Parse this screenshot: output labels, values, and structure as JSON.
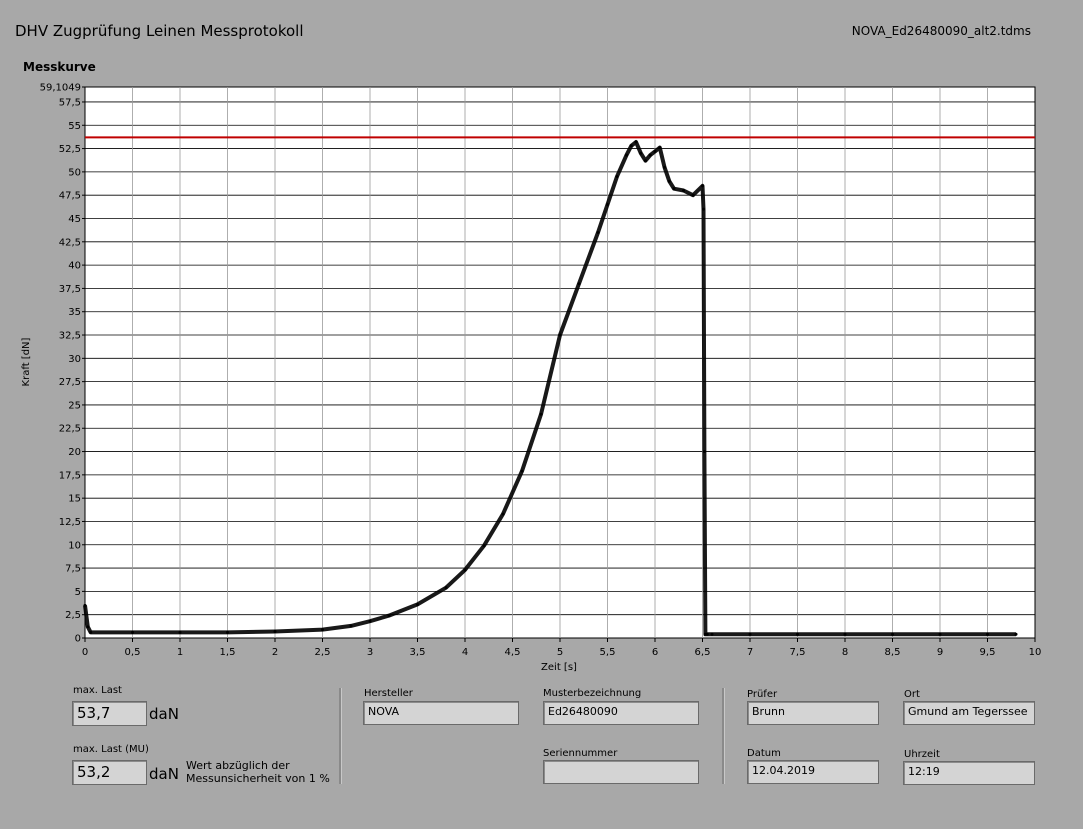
{
  "header": {
    "title": "DHV Zugprüfung Leinen Messprotokoll",
    "filename": "NOVA_Ed26480090_alt2.tdms",
    "section": "Messkurve"
  },
  "chart_data": {
    "type": "line",
    "xlabel": "Zeit [s]",
    "ylabel": "Kraft [dN]",
    "xlim": [
      0,
      10
    ],
    "ylim": [
      0,
      59.1049
    ],
    "x_ticks": [
      "0",
      "0,5",
      "1",
      "1,5",
      "2",
      "2,5",
      "3",
      "3,5",
      "4",
      "4,5",
      "5",
      "5,5",
      "6",
      "6,5",
      "7",
      "7,5",
      "8",
      "8,5",
      "9",
      "9,5",
      "10"
    ],
    "y_ticks": [
      "0",
      "2,5",
      "5",
      "7,5",
      "10",
      "12,5",
      "15",
      "17,5",
      "20",
      "22,5",
      "25",
      "27,5",
      "30",
      "32,5",
      "35",
      "37,5",
      "40",
      "42,5",
      "45",
      "47,5",
      "50",
      "52,5",
      "55",
      "57,5",
      "59,1049"
    ],
    "y_tick_values": [
      0,
      2.5,
      5,
      7.5,
      10,
      12.5,
      15,
      17.5,
      20,
      22.5,
      25,
      27.5,
      30,
      32.5,
      35,
      37.5,
      40,
      42.5,
      45,
      47.5,
      50,
      52.5,
      55,
      57.5,
      59.1049
    ],
    "grid": true,
    "series": [
      {
        "color": "#000000",
        "x": [
          0,
          0.03,
          0.06,
          0.5,
          1,
          1.5,
          2,
          2.5,
          2.8,
          3,
          3.2,
          3.5,
          3.8,
          4,
          4.2,
          4.4,
          4.6,
          4.8,
          5,
          5.2,
          5.4,
          5.5,
          5.6,
          5.7,
          5.75,
          5.8,
          5.85,
          5.9,
          5.95,
          6.0,
          6.05,
          6.1,
          6.15,
          6.2,
          6.3,
          6.4,
          6.5,
          6.51,
          6.52,
          6.53,
          6.55,
          6.6,
          7,
          7.5,
          8,
          8.5,
          9,
          9.5,
          9.8
        ],
        "y": [
          3.5,
          1.2,
          0.6,
          0.6,
          0.6,
          0.6,
          0.7,
          0.9,
          1.3,
          1.8,
          2.4,
          3.6,
          5.4,
          7.3,
          9.9,
          13.3,
          17.9,
          24,
          32.5,
          38,
          43.5,
          46.5,
          49.5,
          51.8,
          52.8,
          53.2,
          52.0,
          51.2,
          51.8,
          52.2,
          52.6,
          50.5,
          49.0,
          48.2,
          48.0,
          47.5,
          48.5,
          46.0,
          20,
          0.4,
          0.4,
          0.4,
          0.4,
          0.4,
          0.4,
          0.4,
          0.4,
          0.4,
          0.4
        ]
      }
    ],
    "threshold": {
      "value": 53.7,
      "color": "#c00000"
    }
  },
  "fields": {
    "max_last": {
      "label": "max. Last",
      "value": "53,7",
      "unit": "daN"
    },
    "max_last_mu": {
      "label": "max. Last (MU)",
      "value": "53,2",
      "unit": "daN",
      "note_line1": "Wert abzüglich der",
      "note_line2": "Messunsicherheit von 1 %"
    },
    "hersteller": {
      "label": "Hersteller",
      "value": "NOVA"
    },
    "musterbezeichnung": {
      "label": "Musterbezeichnung",
      "value": "Ed26480090"
    },
    "seriennummer": {
      "label": "Seriennummer",
      "value": ""
    },
    "pruefer": {
      "label": "Prüfer",
      "value": "Brunn"
    },
    "ort": {
      "label": "Ort",
      "value": "Gmund am Tegerssee"
    },
    "datum": {
      "label": "Datum",
      "value": "12.04.2019"
    },
    "uhrzeit": {
      "label": "Uhrzeit",
      "value": "12:19"
    }
  }
}
